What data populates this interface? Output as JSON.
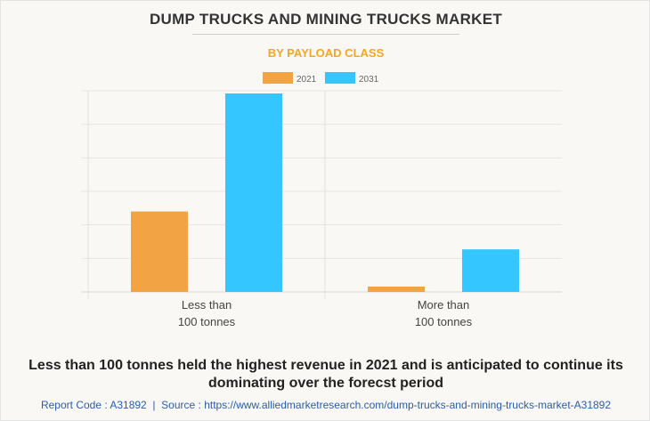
{
  "title": "DUMP TRUCKS AND MINING TRUCKS MARKET",
  "subtitle": "BY PAYLOAD CLASS",
  "chart_data": {
    "type": "bar",
    "categories": [
      [
        "Less than",
        "100 tonnes"
      ],
      [
        "More than",
        "100 tonnes"
      ]
    ],
    "series": [
      {
        "name": "2021",
        "color": "#f2a444",
        "values": [
          2.4,
          0.16
        ]
      },
      {
        "name": "2031",
        "color": "#33c6ff",
        "values": [
          5.92,
          1.27
        ]
      }
    ],
    "ylim": [
      0,
      6
    ],
    "grid": true,
    "legend": "top-center",
    "xlabel": "",
    "ylabel": ""
  },
  "caption": "Less than 100 tonnes held the highest revenue in 2021 and is anticipated to continue its dominating over the forecst period",
  "footer": "Report Code : A31892  |  Source : https://www.alliedmarketresearch.com/dump-trucks-and-mining-trucks-market-A31892"
}
